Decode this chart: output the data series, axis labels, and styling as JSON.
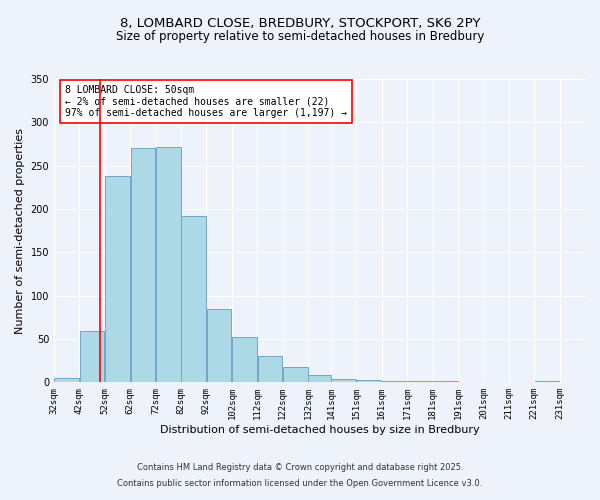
{
  "title_line1": "8, LOMBARD CLOSE, BREDBURY, STOCKPORT, SK6 2PY",
  "title_line2": "Size of property relative to semi-detached houses in Bredbury",
  "xlabel": "Distribution of semi-detached houses by size in Bredbury",
  "ylabel": "Number of semi-detached properties",
  "bar_left_edges": [
    32,
    42,
    52,
    62,
    72,
    82,
    92,
    102,
    112,
    122,
    132,
    141,
    151,
    161,
    171,
    181,
    191,
    201,
    211,
    221
  ],
  "bar_widths": [
    10,
    10,
    10,
    10,
    10,
    10,
    10,
    10,
    10,
    10,
    9,
    10,
    10,
    10,
    10,
    10,
    10,
    10,
    10,
    10
  ],
  "bar_heights": [
    5,
    59,
    238,
    270,
    272,
    192,
    85,
    52,
    30,
    18,
    9,
    4,
    3,
    1,
    1,
    1,
    0,
    0,
    0,
    1
  ],
  "bar_color": "#add8e6",
  "bar_edge_color": "#6ea8c8",
  "tick_labels": [
    "32sqm",
    "42sqm",
    "52sqm",
    "62sqm",
    "72sqm",
    "82sqm",
    "92sqm",
    "102sqm",
    "112sqm",
    "122sqm",
    "132sqm",
    "141sqm",
    "151sqm",
    "161sqm",
    "171sqm",
    "181sqm",
    "191sqm",
    "201sqm",
    "211sqm",
    "221sqm",
    "231sqm"
  ],
  "ylim": [
    0,
    350
  ],
  "xlim_left": 32,
  "xlim_right": 231,
  "yticks": [
    0,
    50,
    100,
    150,
    200,
    250,
    300,
    350
  ],
  "marker_x": 50,
  "marker_color": "red",
  "annotation_title": "8 LOMBARD CLOSE: 50sqm",
  "annotation_line2": "← 2% of semi-detached houses are smaller (22)",
  "annotation_line3": "97% of semi-detached houses are larger (1,197) →",
  "annotation_box_color": "white",
  "annotation_edge_color": "red",
  "footnote1": "Contains HM Land Registry data © Crown copyright and database right 2025.",
  "footnote2": "Contains public sector information licensed under the Open Government Licence v3.0.",
  "background_color": "#eef2fb",
  "grid_color": "white",
  "title_fontsize": 9.5,
  "subtitle_fontsize": 8.5,
  "tick_fontsize": 6.5,
  "label_fontsize": 8,
  "footnote_fontsize": 6,
  "annotation_fontsize": 7
}
